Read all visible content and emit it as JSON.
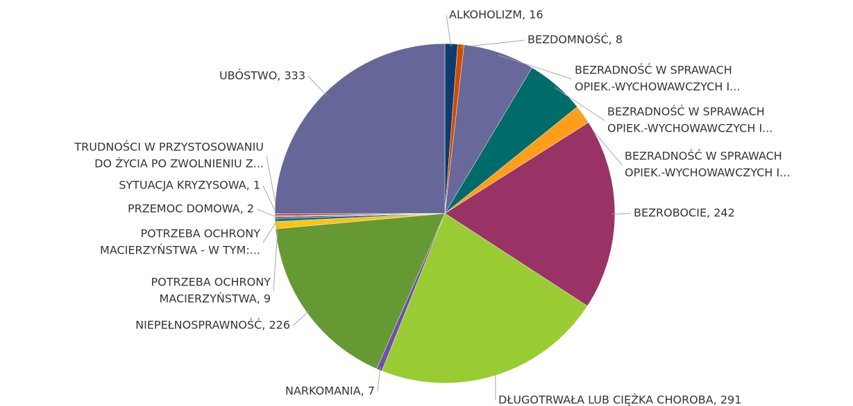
{
  "chart_data": {
    "type": "pie",
    "values": [
      16,
      8,
      90,
      75,
      24,
      242,
      291,
      7,
      226,
      9,
      4,
      2,
      1,
      3,
      333
    ],
    "value_labels": [
      [
        "ALKOHOLIZM, 16"
      ],
      [
        "BEZDOMNOŚĆ, 8"
      ],
      [
        "BEZRADNOŚĆ W SPRAWACH",
        "OPIEK.-WYCHOWAWCZYCH I..."
      ],
      [
        "BEZRADNOŚĆ W SPRAWACH",
        "OPIEK.-WYCHOWAWCZYCH I..."
      ],
      [
        "BEZRADNOŚĆ W SPRAWACH",
        "OPIEK.-WYCHOWAWCZYCH I..."
      ],
      [
        "BEZROBOCIE, 242"
      ],
      [
        "DŁUGOTRWAŁA LUB CIĘŻKA CHOROBA, 291"
      ],
      [
        "NARKOMANIA, 7"
      ],
      [
        "NIEPEŁNOSPRAWNOŚĆ, 226"
      ],
      [
        "POTRZEBA OCHRONY",
        "MACIERZYŃSTWA, 9"
      ],
      [
        "POTRZEBA OCHRONY",
        "MACIERZYŃSTWA - W TYM:..."
      ],
      [
        "PRZEMOC DOMOWA, 2"
      ],
      [
        "SYTUACJA KRYZYSOWA, 1"
      ],
      [
        "TRUDNOŚCI W PRZYSTOSOWANIU",
        "DO ŻYCIA PO ZWOLNIENIU Z..."
      ],
      [
        "UBÓSTWO, 333"
      ]
    ],
    "colors": [
      "#0e3a6e",
      "#d04a02",
      "#68689a",
      "#006b6b",
      "#ff9e1b",
      "#993366",
      "#99cc33",
      "#6f4fa8",
      "#669933",
      "#ffc20e",
      "#1a6e8e",
      "#2e5e8e",
      "#e07b00",
      "#c0504d",
      "#666699"
    ]
  }
}
